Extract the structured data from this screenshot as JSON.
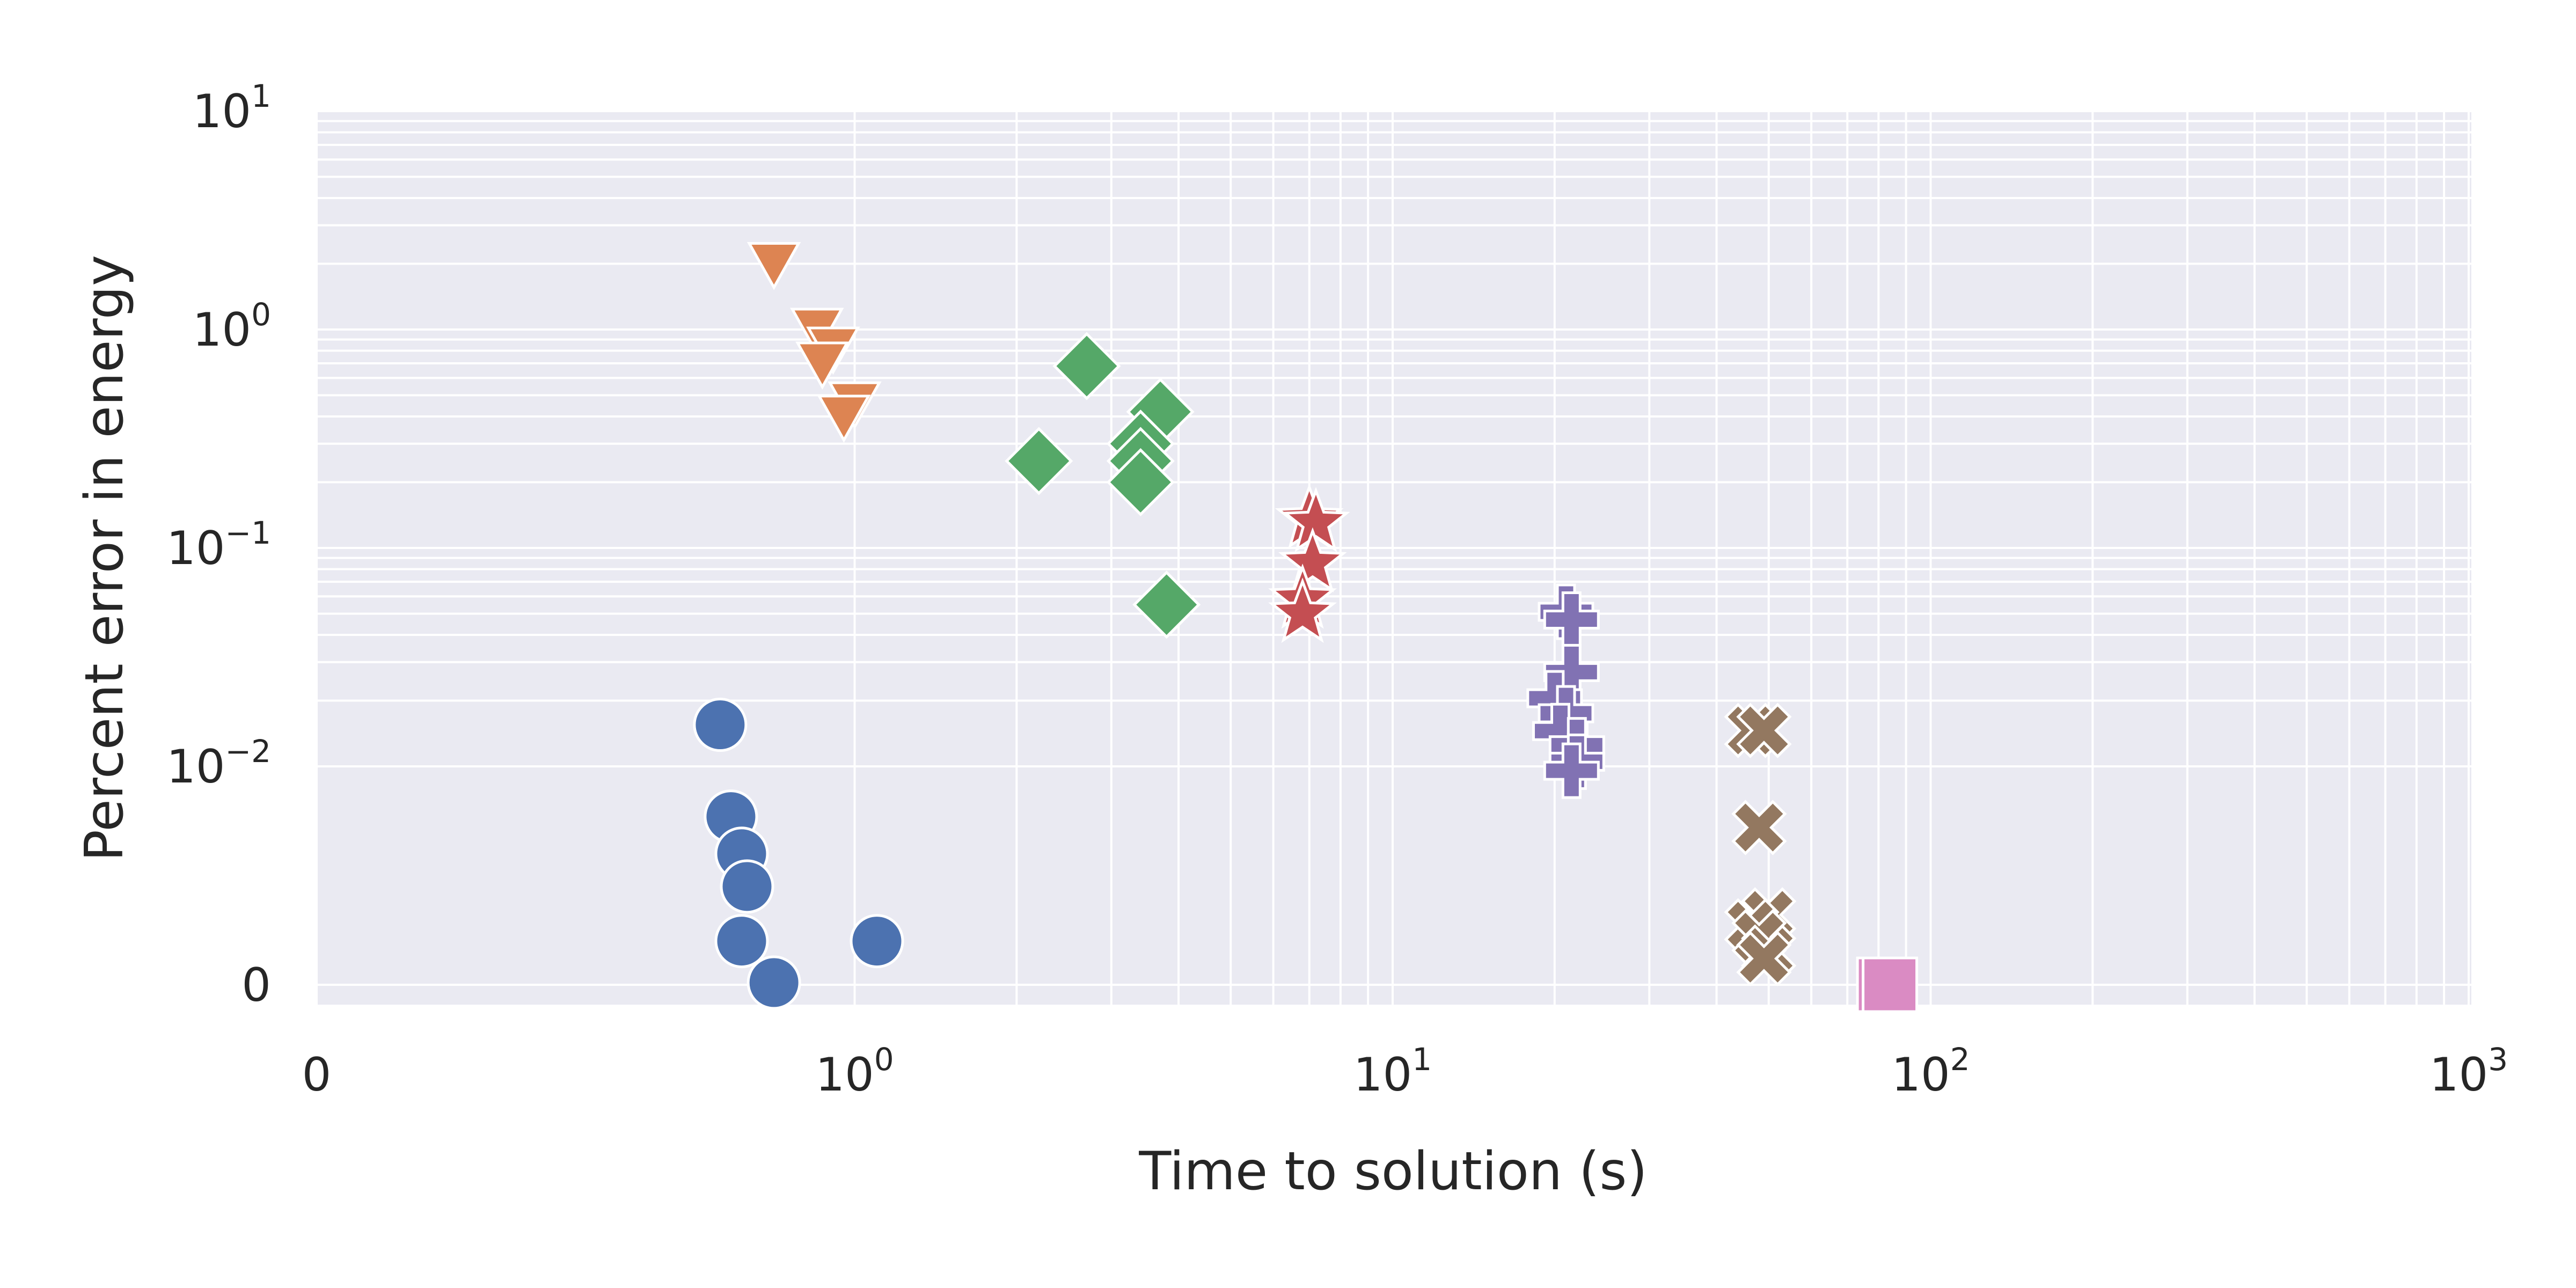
{
  "chart_data": {
    "type": "scatter",
    "title": "",
    "xlabel": "Time to solution (s)",
    "ylabel": "Percent error in energy",
    "xscale": "symlog",
    "yscale": "symlog",
    "xlim": [
      0,
      1000
    ],
    "ylim": [
      0,
      10
    ],
    "x_ticks": [
      {
        "value": 0,
        "base": "0",
        "exp": ""
      },
      {
        "value": 1,
        "base": "10",
        "exp": "0"
      },
      {
        "value": 10,
        "base": "10",
        "exp": "1"
      },
      {
        "value": 100,
        "base": "10",
        "exp": "2"
      },
      {
        "value": 1000,
        "base": "10",
        "exp": "3"
      }
    ],
    "y_ticks": [
      {
        "value": 0,
        "base": "0",
        "exp": ""
      },
      {
        "value": 0.01,
        "base": "10",
        "exp": "−2"
      },
      {
        "value": 0.1,
        "base": "10",
        "exp": "−1"
      },
      {
        "value": 1,
        "base": "10",
        "exp": "0"
      },
      {
        "value": 10,
        "base": "10",
        "exp": "1"
      }
    ],
    "grid": true,
    "legend": "none",
    "background": "#EAEAF2",
    "series": [
      {
        "marker": "circle",
        "color": "#4C72B0",
        "points": [
          [
            0.75,
            0.0155
          ],
          [
            0.77,
            0.0077
          ],
          [
            0.79,
            0.006
          ],
          [
            0.8,
            0.0045
          ],
          [
            0.79,
            0.002
          ],
          [
            1.1,
            0.002
          ],
          [
            0.85,
            0.0001
          ]
        ]
      },
      {
        "marker": "triangle-down",
        "color": "#DD8452",
        "points": [
          [
            0.85,
            2.0
          ],
          [
            0.93,
            1.0
          ],
          [
            0.96,
            0.82
          ],
          [
            0.94,
            0.7
          ],
          [
            1.0,
            0.46
          ],
          [
            0.98,
            0.4
          ]
        ]
      },
      {
        "marker": "diamond",
        "color": "#55A868",
        "points": [
          [
            2.7,
            0.68
          ],
          [
            3.7,
            0.42
          ],
          [
            3.4,
            0.3
          ],
          [
            3.4,
            0.25
          ],
          [
            2.2,
            0.25
          ],
          [
            3.4,
            0.2
          ],
          [
            3.8,
            0.055
          ]
        ]
      },
      {
        "marker": "star",
        "color": "#C44E52",
        "points": [
          [
            7.0,
            0.135
          ],
          [
            7.2,
            0.13
          ],
          [
            7.1,
            0.085
          ],
          [
            6.8,
            0.058
          ],
          [
            6.8,
            0.05
          ]
        ]
      },
      {
        "marker": "plus",
        "color": "#8172B3",
        "points": [
          [
            21.0,
            0.051
          ],
          [
            21.5,
            0.047
          ],
          [
            21.5,
            0.027
          ],
          [
            20.0,
            0.0205
          ],
          [
            21.0,
            0.0175
          ],
          [
            20.5,
            0.0145
          ],
          [
            22.0,
            0.0125
          ],
          [
            22.0,
            0.0105
          ],
          [
            21.5,
            0.0098
          ]
        ]
      },
      {
        "marker": "x",
        "color": "#937860",
        "points": [
          [
            46.5,
            0.0146
          ],
          [
            49.0,
            0.0146
          ],
          [
            48.0,
            0.0072
          ],
          [
            50.0,
            0.0032
          ],
          [
            46.5,
            0.0027
          ],
          [
            48.0,
            0.0022
          ],
          [
            50.0,
            0.0015
          ],
          [
            49.0,
            0.0012
          ]
        ]
      },
      {
        "marker": "square",
        "color": "#DA8BC3",
        "points": [
          [
            82.0,
            0.0
          ],
          [
            84.0,
            0.0
          ]
        ]
      }
    ]
  }
}
